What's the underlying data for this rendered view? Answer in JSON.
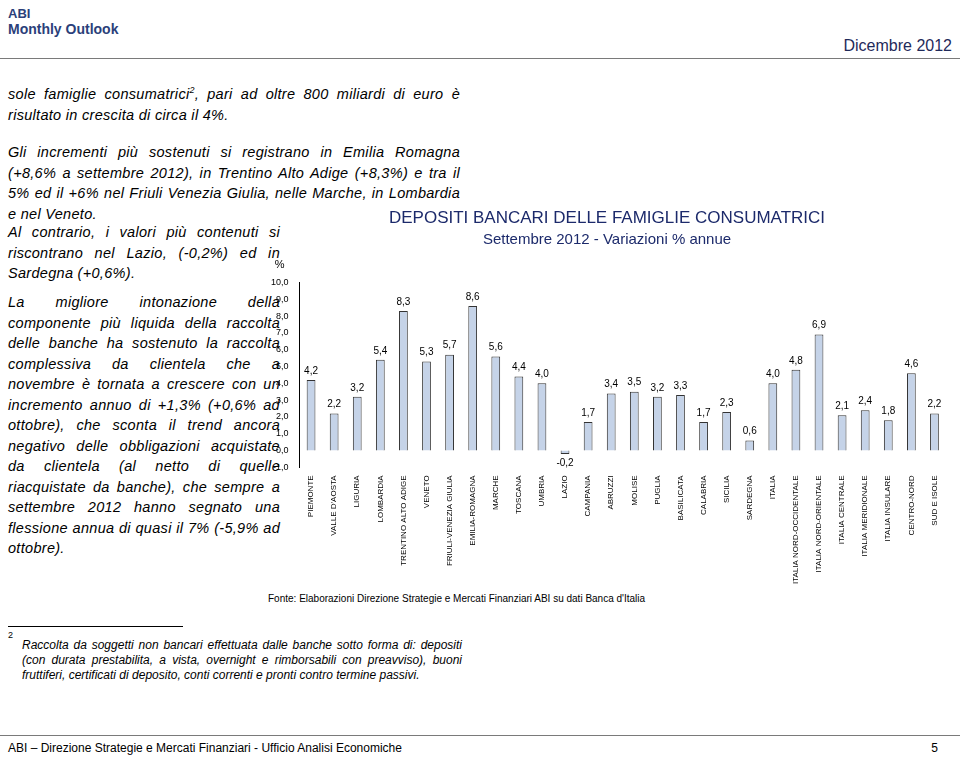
{
  "header": {
    "logo": "ABI",
    "publication": "Monthly Outlook",
    "date": "Dicembre 2012"
  },
  "paragraphs": [
    {
      "text_before": "sole famiglie consumatrici",
      "sup": "2",
      "text_after": ", pari ad oltre 800 miliardi di euro è risultato in crescita di circa il 4%."
    },
    {
      "text": "Gli incrementi più sostenuti si registrano in Emilia Romagna (+8,6% a settembre 2012), in Trentino Alto Adige (+8,3%) e tra il 5% ed il +6% nel Friuli Venezia Giulia, nelle Marche, in Lombardia e nel Veneto."
    },
    {
      "text": "Al contrario, i valori più contenuti si riscontrano nel Lazio, (-0,2%) ed in Sardegna (+0,6%)."
    },
    {
      "text": "La migliore intonazione della componente più liquida della raccolta delle banche ha sostenuto la raccolta complessiva da clientela che a novembre è tornata a crescere con un incremento annuo di +1,3% (+0,6% ad ottobre), che sconta il trend ancora negativo delle obbligazioni acquistate da clientela (al netto di quelle riacquistate da banche), che sempre a settembre 2012 hanno segnato una flessione annua di quasi il 7% (-5,9% ad ottobre)."
    }
  ],
  "chart_data": {
    "type": "bar",
    "title": "DEPOSITI BANCARI DELLE FAMIGLIE CONSUMATRICI",
    "subtitle": "Settembre 2012 - Variazioni % annue",
    "ylabel": "%",
    "source": "Fonte: Elaborazioni Direzione Strategie e Mercati Finanziari ABI su dati Banca d'Italia",
    "categories": [
      "PIEMONTE",
      "VALLE D'AOSTA",
      "LIGURIA",
      "LOMBARDIA",
      "TRENTINO ALTO ADIGE",
      "VENETO",
      "FRIULI-VENEZIA GIULIA",
      "EMILIA-ROMAGNA",
      "MARCHE",
      "TOSCANA",
      "UMBRIA",
      "LAZIO",
      "CAMPANIA",
      "ABRUZZI",
      "MOLISE",
      "PUGLIA",
      "BASILICATA",
      "CALABRIA",
      "SICILIA",
      "SARDEGNA",
      "ITALIA",
      "ITALIA NORD-OCCIDENTALE",
      "ITALIA NORD-ORIENTALE",
      "ITALIA CENTRALE",
      "ITALIA MERIDIONALE",
      "ITALIA INSULARE",
      "CENTRO-NORD",
      "SUD E ISOLE"
    ],
    "values": [
      4.2,
      2.2,
      3.2,
      5.4,
      8.3,
      5.3,
      5.7,
      8.6,
      5.6,
      4.4,
      4.0,
      -0.2,
      1.7,
      3.4,
      3.5,
      3.2,
      3.3,
      1.7,
      2.3,
      0.6,
      4.0,
      4.8,
      6.9,
      2.1,
      2.4,
      1.8,
      4.6,
      2.2
    ],
    "value_labels": [
      "4,2",
      "2,2",
      "3,2",
      "5,4",
      "8,3",
      "5,3",
      "5,7",
      "8,6",
      "5,6",
      "4,4",
      "4,0",
      "-0,2",
      "1,7",
      "3,4",
      "3,5",
      "3,2",
      "3,3",
      "1,7",
      "2,3",
      "0,6",
      "4,0",
      "4,8",
      "6,9",
      "2,1",
      "2,4",
      "1,8",
      "4,6",
      "2,2"
    ],
    "data_labels": true,
    "color": "#c5d3e8",
    "ylim": [
      -1,
      10
    ],
    "yticks": [
      {
        "value": -1,
        "label": "-1,0"
      },
      {
        "value": 0,
        "label": "0,0"
      },
      {
        "value": 1,
        "label": "1,0"
      },
      {
        "value": 2,
        "label": "2,0"
      },
      {
        "value": 3,
        "label": "3,0"
      },
      {
        "value": 4,
        "label": "4,0"
      },
      {
        "value": 5,
        "label": "5,0"
      },
      {
        "value": 6,
        "label": "6,0"
      },
      {
        "value": 7,
        "label": "7,0"
      },
      {
        "value": 8,
        "label": "8,0"
      },
      {
        "value": 9,
        "label": "9,0"
      },
      {
        "value": 10,
        "label": "10,0"
      }
    ],
    "grid": false
  },
  "footnote": {
    "number": "2",
    "text": "Raccolta da soggetti non bancari effettuata dalle banche sotto forma di: depositi (con durata prestabilita, a vista, overnight e rimborsabili con preavviso), buoni fruttiferi, certificati di deposito, conti correnti e pronti contro termine passivi."
  },
  "footer": {
    "text": "ABI – Direzione Strategie e Mercati Finanziari - Ufficio Analisi Economiche",
    "page": "5"
  }
}
